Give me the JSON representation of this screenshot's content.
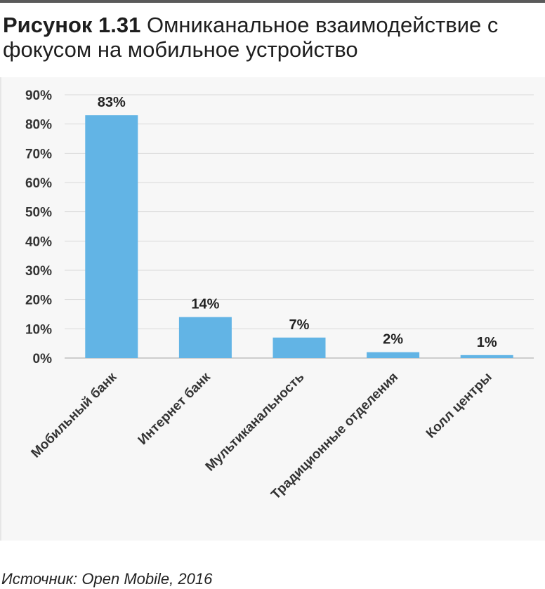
{
  "figure": {
    "label": "Рисунок 1.31",
    "title": "Омниканальное взаимодействие с фокусом на мобильное устройство"
  },
  "source": "Источник: Open Mobile, 2016",
  "colors": {
    "bar": "#62b4e5",
    "grid": "#d9d9d9",
    "axis": "#bfbfbf"
  },
  "chart_data": {
    "type": "bar",
    "categories": [
      "Мобильный банк",
      "Интернет банк",
      "Мультиканальность",
      "Традиционные отделения",
      "Колл центры"
    ],
    "values": [
      83,
      14,
      7,
      2,
      1
    ],
    "data_labels": [
      "83%",
      "14%",
      "7%",
      "2%",
      "1%"
    ],
    "y_ticks": [
      "0%",
      "10%",
      "20%",
      "30%",
      "40%",
      "50%",
      "60%",
      "70%",
      "80%",
      "90%"
    ],
    "ylim": [
      0,
      90
    ],
    "grid": true,
    "legend": "none"
  }
}
